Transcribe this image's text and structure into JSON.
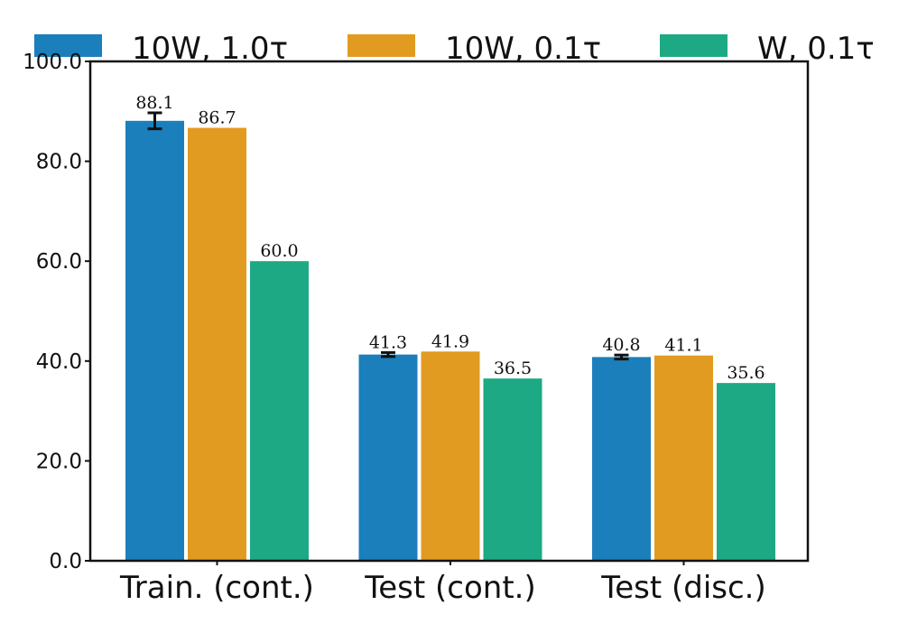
{
  "chart_data": {
    "type": "bar",
    "title": "",
    "xlabel": "",
    "ylabel": "",
    "ylim": [
      0,
      100
    ],
    "yticks": [
      0,
      20,
      40,
      60,
      80,
      100
    ],
    "ytick_labels": [
      "0.0",
      "20.0",
      "40.0",
      "60.0",
      "80.0",
      "100.0"
    ],
    "grid": false,
    "legend_position": "top",
    "categories": [
      "Train. (cont.)",
      "Test (cont.)",
      "Test (disc.)"
    ],
    "series": [
      {
        "name": "10W, 1.0τ",
        "color": "#1b7fbc",
        "values": [
          88.1,
          41.3,
          40.8
        ],
        "labels": [
          "88.1",
          "41.3",
          "40.8"
        ],
        "error": [
          1.6,
          0.4,
          0.4
        ]
      },
      {
        "name": "10W, 0.1τ",
        "color": "#e29b21",
        "values": [
          86.7,
          41.9,
          41.1
        ],
        "labels": [
          "86.7",
          "41.9",
          "41.1"
        ],
        "error": [
          0,
          0,
          0
        ]
      },
      {
        "name": "W, 0.1τ",
        "color": "#1da983",
        "values": [
          60.0,
          36.5,
          35.6
        ],
        "labels": [
          "60.0",
          "36.5",
          "35.6"
        ],
        "error": [
          0,
          0,
          0
        ]
      }
    ]
  }
}
